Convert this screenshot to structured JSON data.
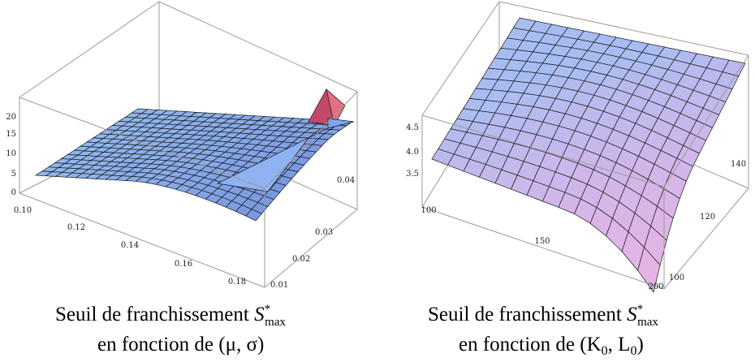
{
  "colors": {
    "box": "#9a9a9a",
    "surface_left_light": "#9cc6f4",
    "surface_left_dark": "#5a6fd0",
    "surface_left_peak": "#c04a68",
    "surface_right_light": "#a7bdf2",
    "surface_right_pink": "#f2b2e2",
    "grid_line": "#1a1a1a"
  },
  "chart_data": [
    {
      "type": "surface3d",
      "title": "Seuil de franchissement S*max en fonction de (μ, σ)",
      "caption_line1": "Seuil de franchissement ",
      "caption_symbol": "S",
      "caption_sup": "*",
      "caption_sub": "max",
      "caption_line2_prefix": "en fonction de ",
      "caption_vars": "(μ, σ)",
      "x_axis": {
        "ticks": [
          "0.10",
          "0.12",
          "0.14",
          "0.16",
          "0.18"
        ],
        "range": [
          0.1,
          0.19
        ]
      },
      "y_axis": {
        "ticks": [
          "0.01",
          "0.02",
          "0.03",
          "0.04"
        ],
        "range": [
          0.01,
          0.045
        ]
      },
      "z_axis": {
        "ticks": [
          "0",
          "5",
          "10",
          "15",
          "20"
        ],
        "range": [
          0,
          20
        ]
      },
      "grid": "mesh",
      "surface_description_values": {
        "plateau": 4,
        "dip_min": -2,
        "peak_max": 20
      }
    },
    {
      "type": "surface3d",
      "title": "Seuil de franchissement S*max en fonction de (K0, L0)",
      "caption_line1": "Seuil de franchissement ",
      "caption_symbol": "S",
      "caption_sup": "*",
      "caption_sub": "max",
      "caption_line2_prefix": "en fonction de ",
      "caption_vars": "(K",
      "caption_vars_sub1": "0",
      "caption_vars_mid": ", L",
      "caption_vars_sub2": "0",
      "caption_vars_end": ")",
      "x_axis": {
        "ticks": [
          "100",
          "150",
          "200"
        ],
        "range": [
          100,
          200
        ]
      },
      "y_axis": {
        "ticks": [
          "100",
          "120",
          "140"
        ],
        "range": [
          100,
          150
        ]
      },
      "z_axis": {
        "ticks": [
          "3.5",
          "4.0",
          "4.5"
        ],
        "range": [
          3.3,
          4.8
        ]
      },
      "grid": "mesh",
      "surface_description_values": {
        "max": 4.8,
        "min": 3.3
      }
    }
  ]
}
